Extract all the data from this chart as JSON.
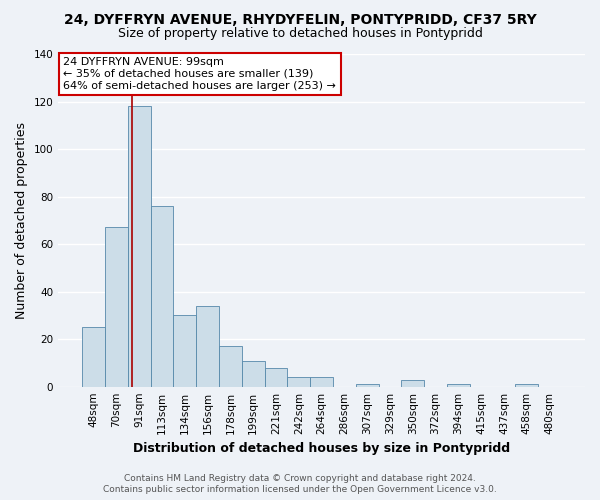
{
  "title": "24, DYFFRYN AVENUE, RHYDYFELIN, PONTYPRIDD, CF37 5RY",
  "subtitle": "Size of property relative to detached houses in Pontypridd",
  "xlabel": "Distribution of detached houses by size in Pontypridd",
  "ylabel": "Number of detached properties",
  "bar_labels": [
    "48sqm",
    "70sqm",
    "91sqm",
    "113sqm",
    "134sqm",
    "156sqm",
    "178sqm",
    "199sqm",
    "221sqm",
    "242sqm",
    "264sqm",
    "286sqm",
    "307sqm",
    "329sqm",
    "350sqm",
    "372sqm",
    "394sqm",
    "415sqm",
    "437sqm",
    "458sqm",
    "480sqm"
  ],
  "bar_values": [
    25,
    67,
    118,
    76,
    30,
    34,
    17,
    11,
    8,
    4,
    4,
    0,
    1,
    0,
    3,
    0,
    1,
    0,
    0,
    1,
    0
  ],
  "bar_color": "#ccdde8",
  "bar_edge_color": "#5588aa",
  "ylim": [
    0,
    140
  ],
  "yticks": [
    0,
    20,
    40,
    60,
    80,
    100,
    120,
    140
  ],
  "annotation_title": "24 DYFFRYN AVENUE: 99sqm",
  "annotation_line1": "← 35% of detached houses are smaller (139)",
  "annotation_line2": "64% of semi-detached houses are larger (253) →",
  "annotation_box_color": "#ffffff",
  "annotation_box_edge": "#cc0000",
  "vline_color": "#aa0000",
  "footnote1": "Contains HM Land Registry data © Crown copyright and database right 2024.",
  "footnote2": "Contains public sector information licensed under the Open Government Licence v3.0.",
  "background_color": "#eef2f7",
  "plot_background": "#eef2f7",
  "grid_color": "#ffffff",
  "title_fontsize": 10,
  "subtitle_fontsize": 9,
  "axis_label_fontsize": 9,
  "tick_fontsize": 7.5,
  "footnote_fontsize": 6.5
}
